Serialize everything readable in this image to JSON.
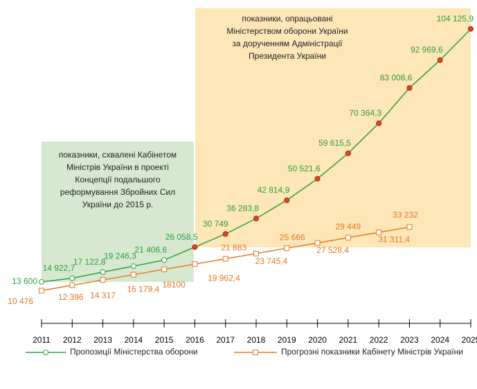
{
  "chart_data": {
    "type": "line",
    "categories": [
      "2011",
      "2012",
      "2013",
      "2014",
      "2015",
      "2016",
      "2017",
      "2018",
      "2019",
      "2020",
      "2021",
      "2022",
      "2023",
      "2024",
      "2025"
    ],
    "series": [
      {
        "name": "Пропозиції Міністерства оборони",
        "color": "#2e9e3c",
        "marker": "circle",
        "marker_colors": [
          "#ffffff",
          "#ffffff",
          "#ffffff",
          "#ffffff",
          "#ffffff",
          "#e8401c",
          "#e8401c",
          "#e8401c",
          "#e8401c",
          "#e8401c",
          "#e8401c",
          "#e8401c",
          "#e8401c",
          "#e8401c",
          "#e8401c"
        ],
        "values": [
          13600,
          14922.7,
          17122.8,
          19246.3,
          21406.6,
          26058.5,
          30749,
          36283.8,
          42814.9,
          50521.6,
          59615.5,
          70364.3,
          83008.6,
          92969.6,
          104125.9
        ],
        "value_labels": [
          "13 600",
          "14 922,7",
          "17 122,8",
          "19 246,3",
          "21 406,6",
          "26 058,5",
          "30 749",
          "36 283,8",
          "42 814,9",
          "50 521,6",
          "59 615,5",
          "70 364,3",
          "83 008,6",
          "92 969,6",
          "104 125,9"
        ]
      },
      {
        "name": "Прогрозні показники Кабінету Міністрів України",
        "color": "#e87722",
        "marker": "square",
        "values": [
          10476,
          12396,
          14317,
          16179.4,
          18100,
          19962.4,
          21883,
          23745.4,
          25666,
          27528.4,
          29449,
          31311.4,
          33232,
          null,
          null
        ],
        "value_labels": [
          "10 476",
          "12 396",
          "14 317",
          "16 179,4",
          "18100",
          "19 962,4",
          "21 883",
          "23 745,4",
          "25 666",
          "27 528,4",
          "29 449",
          "31 311,4",
          "33 232",
          null,
          null
        ]
      }
    ],
    "ylim": [
      0,
      112000
    ],
    "annotations": [
      {
        "lines": [
          "показники, схвалені Кабінетом",
          "Міністрів України в проекті",
          "Концепції подальшого",
          "реформування Збройних Сил",
          "України до 2015 р."
        ]
      },
      {
        "lines": [
          "показники, опрацьовані",
          "Міністерством оборони України",
          "за дорученням Адміністрації",
          "Президента України"
        ]
      }
    ]
  }
}
